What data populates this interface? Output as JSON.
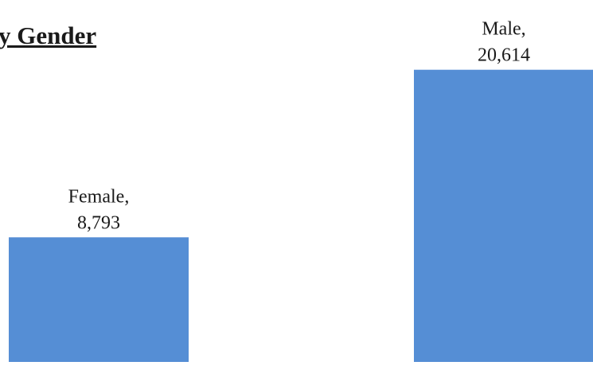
{
  "chart_data": {
    "type": "bar",
    "title": "y Gender",
    "categories": [
      "Female",
      "Male"
    ],
    "values": [
      8793,
      20614
    ],
    "value_labels": [
      "8,793",
      "20,614"
    ],
    "color": "#558ed5",
    "ylim": [
      0,
      22000
    ]
  }
}
